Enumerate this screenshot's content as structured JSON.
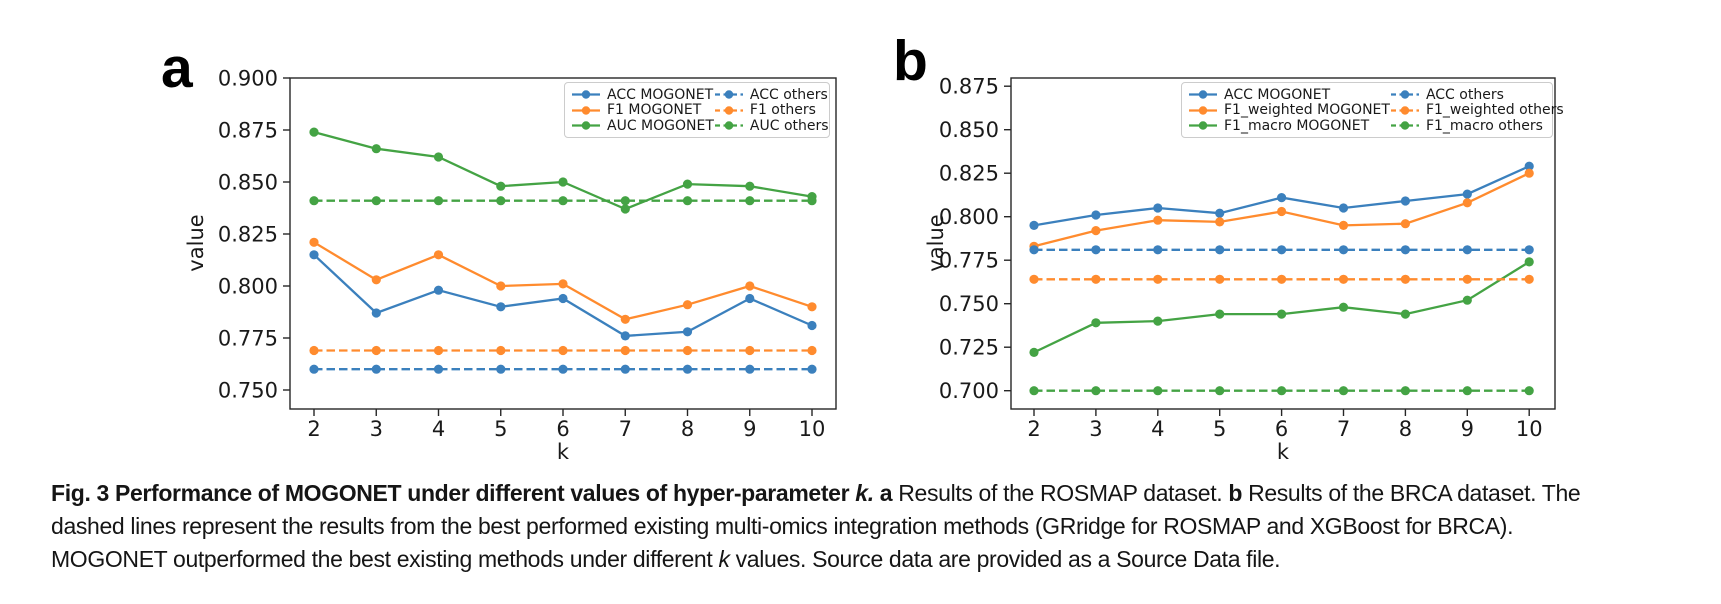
{
  "figure": {
    "background": "#ffffff",
    "spine_color": "#262626",
    "text_color": "#1a1a1a"
  },
  "colors": {
    "blue": "#3b80bd",
    "orange": "#ff8b2e",
    "green": "#44a344"
  },
  "chart_data": [
    {
      "id": "a",
      "type": "line",
      "panel_label": "a",
      "title": "",
      "xlabel": "k",
      "ylabel": "value",
      "x": [
        2,
        3,
        4,
        5,
        6,
        7,
        8,
        9,
        10
      ],
      "ylim": [
        0.75,
        0.9
      ],
      "yticks": [
        "0.750",
        "0.775",
        "0.800",
        "0.825",
        "0.850",
        "0.875",
        "0.900"
      ],
      "grid": false,
      "legend_position": "upper right",
      "series": [
        {
          "name": "ACC MOGONET",
          "color": "#3b80bd",
          "style": "solid",
          "values": [
            0.815,
            0.787,
            0.798,
            0.79,
            0.794,
            0.776,
            0.778,
            0.794,
            0.781
          ]
        },
        {
          "name": "F1 MOGONET",
          "color": "#ff8b2e",
          "style": "solid",
          "values": [
            0.821,
            0.803,
            0.815,
            0.8,
            0.801,
            0.784,
            0.791,
            0.8,
            0.79
          ]
        },
        {
          "name": "AUC MOGONET",
          "color": "#44a344",
          "style": "solid",
          "values": [
            0.874,
            0.866,
            0.862,
            0.848,
            0.85,
            0.837,
            0.849,
            0.848,
            0.843
          ]
        },
        {
          "name": "ACC others",
          "color": "#3b80bd",
          "style": "dashed",
          "values": [
            0.76,
            0.76,
            0.76,
            0.76,
            0.76,
            0.76,
            0.76,
            0.76,
            0.76
          ]
        },
        {
          "name": "F1 others",
          "color": "#ff8b2e",
          "style": "dashed",
          "values": [
            0.769,
            0.769,
            0.769,
            0.769,
            0.769,
            0.769,
            0.769,
            0.769,
            0.769
          ]
        },
        {
          "name": "AUC others",
          "color": "#44a344",
          "style": "dashed",
          "values": [
            0.841,
            0.841,
            0.841,
            0.841,
            0.841,
            0.841,
            0.841,
            0.841,
            0.841
          ]
        }
      ]
    },
    {
      "id": "b",
      "type": "line",
      "panel_label": "b",
      "title": "",
      "xlabel": "k",
      "ylabel": "value",
      "x": [
        2,
        3,
        4,
        5,
        6,
        7,
        8,
        9,
        10
      ],
      "ylim": [
        0.7,
        0.875
      ],
      "yticks": [
        "0.700",
        "0.725",
        "0.750",
        "0.775",
        "0.800",
        "0.825",
        "0.850",
        "0.875"
      ],
      "grid": false,
      "legend_position": "upper right",
      "series": [
        {
          "name": "ACC MOGONET",
          "color": "#3b80bd",
          "style": "solid",
          "values": [
            0.795,
            0.801,
            0.805,
            0.802,
            0.811,
            0.805,
            0.809,
            0.813,
            0.829
          ]
        },
        {
          "name": "F1_weighted MOGONET",
          "color": "#ff8b2e",
          "style": "solid",
          "values": [
            0.783,
            0.792,
            0.798,
            0.797,
            0.803,
            0.795,
            0.796,
            0.808,
            0.825
          ]
        },
        {
          "name": "F1_macro MOGONET",
          "color": "#44a344",
          "style": "solid",
          "values": [
            0.722,
            0.739,
            0.74,
            0.744,
            0.744,
            0.748,
            0.744,
            0.752,
            0.774
          ]
        },
        {
          "name": "ACC others",
          "color": "#3b80bd",
          "style": "dashed",
          "values": [
            0.781,
            0.781,
            0.781,
            0.781,
            0.781,
            0.781,
            0.781,
            0.781,
            0.781
          ]
        },
        {
          "name": "F1_weighted others",
          "color": "#ff8b2e",
          "style": "dashed",
          "values": [
            0.764,
            0.764,
            0.764,
            0.764,
            0.764,
            0.764,
            0.764,
            0.764,
            0.764
          ]
        },
        {
          "name": "F1_macro others",
          "color": "#44a344",
          "style": "dashed",
          "values": [
            0.7,
            0.7,
            0.7,
            0.7,
            0.7,
            0.7,
            0.7,
            0.7,
            0.7
          ]
        }
      ]
    }
  ],
  "caption": {
    "lines": [
      {
        "segments": [
          {
            "text": "Fig. 3 Performance of MOGONET under different values of hyper-parameter ",
            "bold": true
          },
          {
            "text": "k.",
            "bold": true,
            "italic": true
          },
          {
            "text": " ",
            "bold": false
          },
          {
            "text": "a",
            "bold": true
          },
          {
            "text": " Results of the ROSMAP dataset. ",
            "bold": false
          },
          {
            "text": "b",
            "bold": true
          },
          {
            "text": " Results of the BRCA dataset. The",
            "bold": false
          }
        ]
      },
      {
        "segments": [
          {
            "text": "dashed lines represent the results from the best performed existing multi-omics integration methods (GRridge for ROSMAP and XGBoost for BRCA).",
            "bold": false
          }
        ]
      },
      {
        "segments": [
          {
            "text": "MOGONET outperformed the best existing methods under different ",
            "bold": false
          },
          {
            "text": "k",
            "bold": false,
            "italic": true
          },
          {
            "text": " values. Source data are provided as a Source Data file.",
            "bold": false
          }
        ]
      }
    ]
  }
}
